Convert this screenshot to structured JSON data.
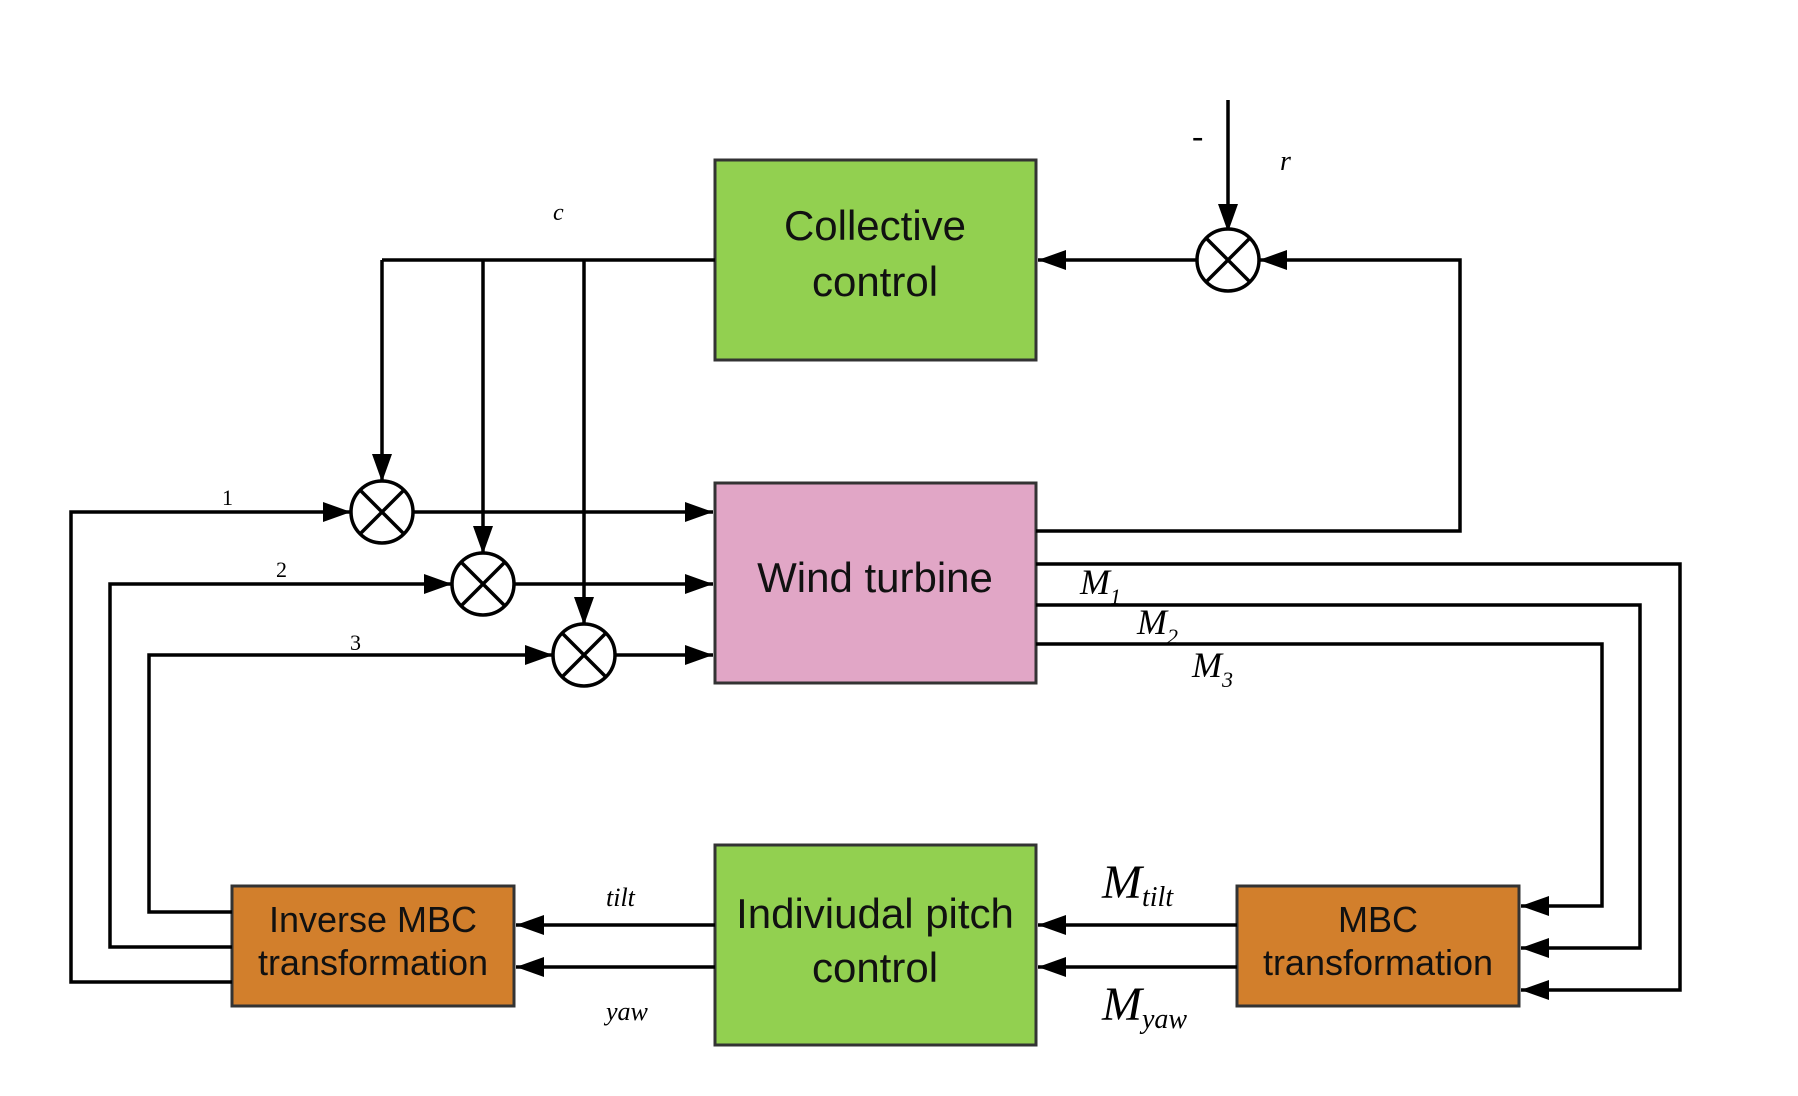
{
  "blocks": {
    "collective": {
      "line1": "Collective",
      "line2": "control",
      "color": "#92d050"
    },
    "wind_turbine": {
      "line1": "Wind turbine",
      "color": "#e1a6c6"
    },
    "ipc": {
      "line1": "Indiviudal pitch",
      "line2": "control",
      "color": "#92d050"
    },
    "inverse_mbc": {
      "line1": "Inverse MBC",
      "line2": "transformation",
      "color": "#d27f2c"
    },
    "mbc": {
      "line1": "MBC",
      "line2": "transformation",
      "color": "#d27f2c"
    }
  },
  "signals": {
    "minus": "-",
    "r": "r",
    "c": "c",
    "one": "1",
    "two": "2",
    "three": "3",
    "tilt": "tilt",
    "yaw": "yaw",
    "m_base": "M",
    "m1_sub": "1",
    "m2_sub": "2",
    "m3_sub": "3",
    "mtilt_sub": "tilt",
    "myaw_sub": "yaw"
  }
}
